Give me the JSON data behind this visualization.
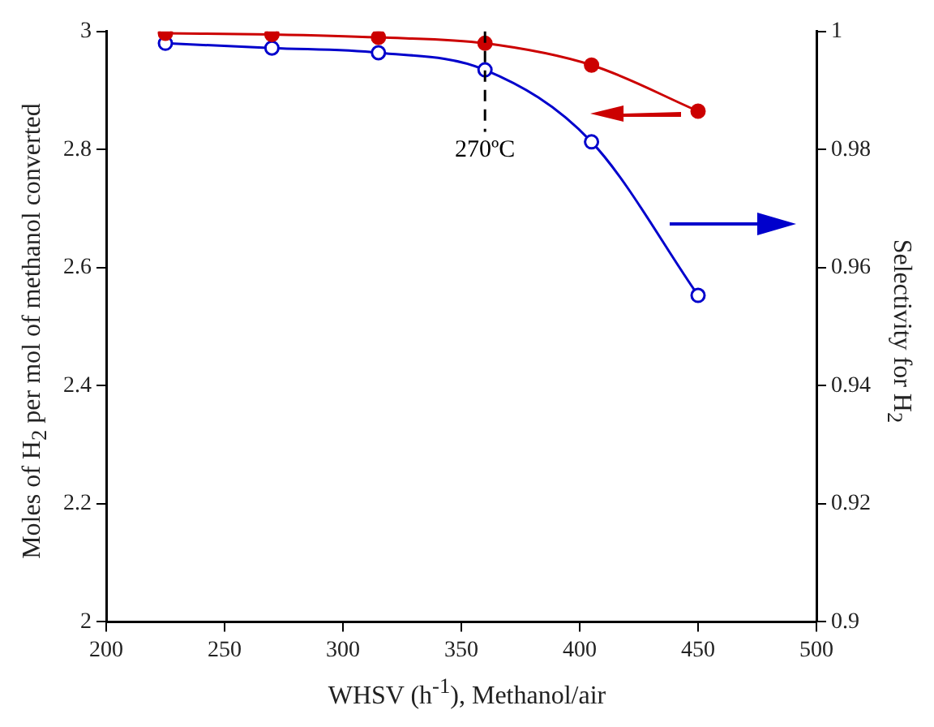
{
  "chart_data": {
    "type": "line",
    "xlabel": "WHSV (h$^{-1}$), Methanol/air",
    "ylabel": "Moles of H$_{2}$ per mol of methanol converted",
    "y2label": "Selectivity for H$_{2}$",
    "x": [
      225,
      270,
      315,
      360,
      405,
      450
    ],
    "series": [
      {
        "color": "#cc0000",
        "values": [
          2.997,
          2.995,
          2.99,
          2.98,
          2.943,
          2.865
        ],
        "marker": "circle"
      },
      {
        "color": "#0000cc",
        "values": [
          0.998,
          0.9972,
          0.9964,
          0.9935,
          0.9813,
          0.9553
        ],
        "axis": "y2",
        "marker": "circle"
      }
    ],
    "xlim": [
      200,
      500
    ],
    "xticks": [
      200,
      250,
      300,
      350,
      400,
      450,
      500
    ],
    "ylim": [
      2,
      3
    ],
    "yticks": [
      2,
      2.2,
      2.4,
      2.6,
      2.8,
      3
    ],
    "y2lim": [
      0.9,
      1
    ],
    "y2ticks": [
      0.9,
      0.92,
      0.94,
      0.96,
      0.98,
      1
    ],
    "ref_lines": [
      {
        "axis": "x",
        "value": 360,
        "label": "270ºC",
        "line_style": "dashed"
      }
    ],
    "grid": false,
    "legend": false
  }
}
